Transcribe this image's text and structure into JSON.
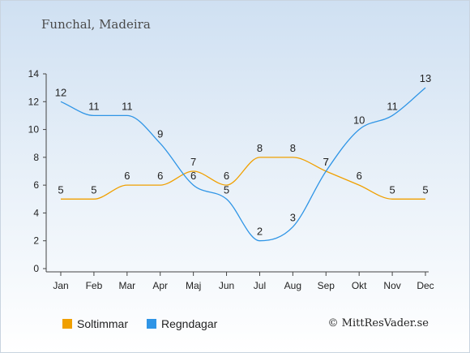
{
  "title": "Funchal, Madeira",
  "copyright": "© MittResVader.se",
  "chart_data": {
    "type": "line",
    "categories": [
      "Jan",
      "Feb",
      "Mar",
      "Apr",
      "Maj",
      "Jun",
      "Jul",
      "Aug",
      "Sep",
      "Okt",
      "Nov",
      "Dec"
    ],
    "series": [
      {
        "name": "Soltimmar",
        "color": "#f0a000",
        "values": [
          5,
          5,
          6,
          6,
          7,
          6,
          8,
          8,
          7,
          6,
          5,
          5
        ]
      },
      {
        "name": "Regndagar",
        "color": "#2f95e6",
        "values": [
          12,
          11,
          11,
          9,
          6,
          5,
          2,
          3,
          7,
          10,
          11,
          13
        ]
      }
    ],
    "ylim": [
      0,
      14
    ],
    "yticks": [
      0,
      2,
      4,
      6,
      8,
      10,
      12,
      14
    ],
    "grid": false,
    "legend": "bottom-left"
  }
}
